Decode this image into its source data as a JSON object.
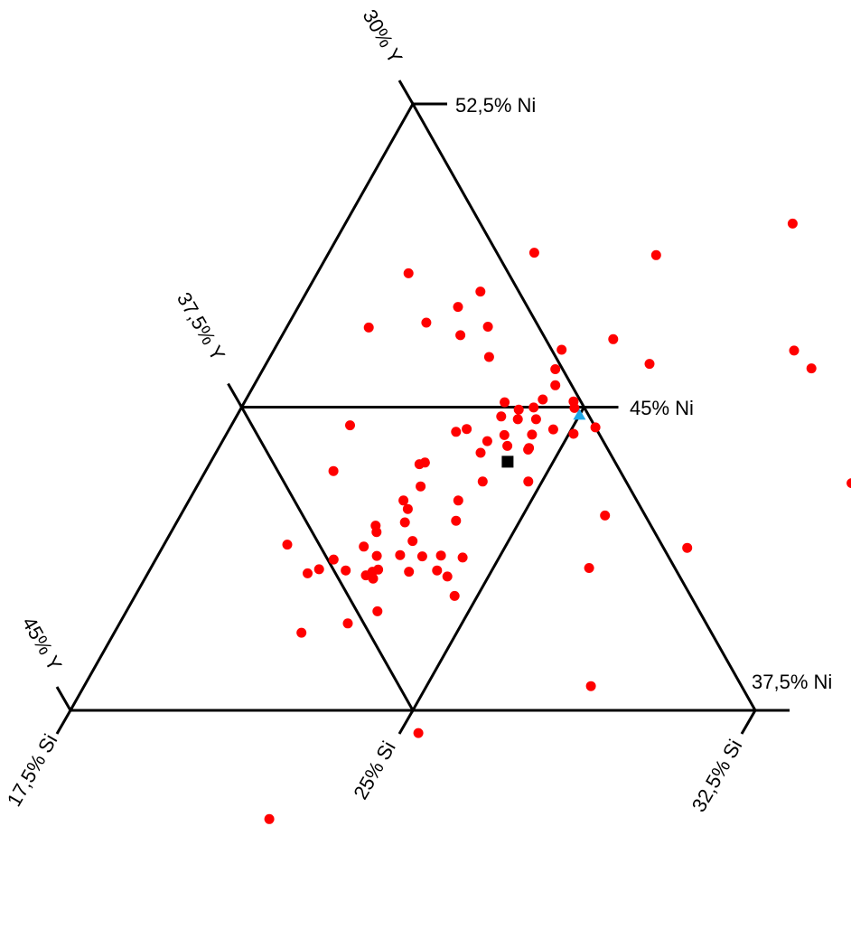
{
  "chart_data": {
    "type": "scatter",
    "diagram": "ternary",
    "title": "",
    "colors": {
      "points": "#ff0000",
      "reference_square": "#000000",
      "reference_triangle": "#1ea7e8",
      "lines": "#000000"
    },
    "ni_range": [
      37.5,
      52.5
    ],
    "si_range": [
      17.5,
      32.5
    ],
    "y_range": [
      30,
      45
    ],
    "ni_ticks": [
      "52,5% Ni",
      "45% Ni",
      "37,5% Ni"
    ],
    "si_ticks": [
      "17,5% Si",
      "25% Si",
      "32,5% Si"
    ],
    "y_ticks": [
      "30% Y",
      "37,5% Y",
      "45% Y"
    ],
    "series": [
      {
        "marker": "circle",
        "points": [
          {
            "si": 22.0,
            "ni": 48.82
          },
          {
            "si": 24.7,
            "ni": 48.76
          },
          {
            "si": 27.3,
            "ni": 49.54
          },
          {
            "si": 30.6,
            "ni": 49.84
          },
          {
            "si": 29.6,
            "ni": 48.81
          },
          {
            "si": 21.3,
            "ni": 47.86
          },
          {
            "si": 20.5,
            "ni": 47.09
          },
          {
            "si": 19.5,
            "ni": 48.31
          },
          {
            "si": 24.8,
            "ni": 46.68
          },
          {
            "si": 25.9,
            "ni": 46.07
          },
          {
            "si": 28.9,
            "ni": 46.4
          },
          {
            "si": 21.4,
            "ni": 46.78
          },
          {
            "si": 23.9,
            "ni": 45.94
          },
          {
            "si": 29.5,
            "ni": 45.96
          },
          {
            "si": 21.0,
            "ni": 47.48
          },
          {
            "si": 21.9,
            "ni": 46.99
          },
          {
            "si": 22.3,
            "ni": 46.24
          },
          {
            "si": 23.8,
            "ni": 46.42
          },
          {
            "si": 24.1,
            "ni": 45.54
          },
          {
            "si": 24.0,
            "ni": 45.19
          },
          {
            "si": 23.2,
            "ni": 45.12
          },
          {
            "si": 23.6,
            "ni": 44.94
          },
          {
            "si": 23.9,
            "ni": 44.99
          },
          {
            "si": 24.7,
            "ni": 45.14
          },
          {
            "si": 24.8,
            "ni": 44.98
          },
          {
            "si": 23.3,
            "ni": 44.77
          },
          {
            "si": 23.7,
            "ni": 44.7
          },
          {
            "si": 24.1,
            "ni": 44.7
          },
          {
            "si": 22.7,
            "ni": 44.46
          },
          {
            "si": 22.5,
            "ni": 44.39
          },
          {
            "si": 23.6,
            "ni": 44.31
          },
          {
            "si": 24.2,
            "ni": 44.32
          },
          {
            "si": 24.6,
            "ni": 44.45
          },
          {
            "si": 23.3,
            "ni": 44.16
          },
          {
            "si": 23.8,
            "ni": 44.04
          },
          {
            "si": 23.3,
            "ni": 43.87
          },
          {
            "si": 24.3,
            "ni": 43.99
          },
          {
            "si": 25.1,
            "ni": 44.34
          },
          {
            "si": 25.5,
            "ni": 44.5
          },
          {
            "si": 24.3,
            "ni": 43.95
          },
          {
            "si": 20.1,
            "ni": 44.55
          },
          {
            "si": 20.3,
            "ni": 43.42
          },
          {
            "si": 24.7,
            "ni": 43.16
          },
          {
            "si": 23.7,
            "ni": 43.16
          },
          {
            "si": 22.2,
            "ni": 43.63
          },
          {
            "si": 22.1,
            "ni": 43.59
          },
          {
            "si": 22.4,
            "ni": 43.04
          },
          {
            "si": 22.2,
            "ni": 42.69
          },
          {
            "si": 22.4,
            "ni": 42.48
          },
          {
            "si": 23.4,
            "ni": 42.69
          },
          {
            "si": 23.6,
            "ni": 42.19
          },
          {
            "si": 22.5,
            "ni": 42.15
          },
          {
            "si": 22.9,
            "ni": 41.69
          },
          {
            "si": 21.9,
            "ni": 42.07
          },
          {
            "si": 22.0,
            "ni": 41.91
          },
          {
            "si": 22.3,
            "ni": 41.32
          },
          {
            "si": 21.9,
            "ni": 41.55
          },
          {
            "si": 21.4,
            "ni": 41.23
          },
          {
            "si": 21.2,
            "ni": 40.99
          },
          {
            "si": 21.0,
            "ni": 40.89
          },
          {
            "si": 21.8,
            "ni": 40.96
          },
          {
            "si": 22.4,
            "ni": 40.93
          },
          {
            "si": 22.5,
            "ni": 40.98
          },
          {
            "si": 22.8,
            "ni": 41.34
          },
          {
            "si": 23.3,
            "ni": 41.31
          },
          {
            "si": 23.7,
            "ni": 41.33
          },
          {
            "si": 24.2,
            "ni": 41.28
          },
          {
            "si": 22.3,
            "ni": 40.84
          },
          {
            "si": 22.5,
            "ni": 40.76
          },
          {
            "si": 23.2,
            "ni": 40.93
          },
          {
            "si": 23.8,
            "ni": 40.96
          },
          {
            "si": 24.1,
            "ni": 40.81
          },
          {
            "si": 20.2,
            "ni": 41.6
          },
          {
            "si": 26.8,
            "ni": 42.32
          },
          {
            "si": 31.8,
            "ni": 43.12
          },
          {
            "si": 29.0,
            "ni": 41.52
          },
          {
            "si": 27.1,
            "ni": 41.02
          },
          {
            "si": 23.0,
            "ni": 39.95
          },
          {
            "si": 24.5,
            "ni": 40.33
          },
          {
            "si": 21.6,
            "ni": 39.42
          },
          {
            "si": 22.5,
            "ni": 39.65
          },
          {
            "si": 25.4,
            "ni": 36.94
          },
          {
            "si": 28.6,
            "ni": 38.1
          },
          {
            "si": 23.2,
            "ni": 34.81
          },
          {
            "si": 19.3,
            "ni": 46.97
          }
        ]
      },
      {
        "marker": "square",
        "points": [
          {
            "si": 24.0,
            "ni": 43.65
          }
        ]
      },
      {
        "marker": "triangle",
        "points": [
          {
            "si": 25.0,
            "ni": 44.8
          }
        ]
      }
    ]
  }
}
